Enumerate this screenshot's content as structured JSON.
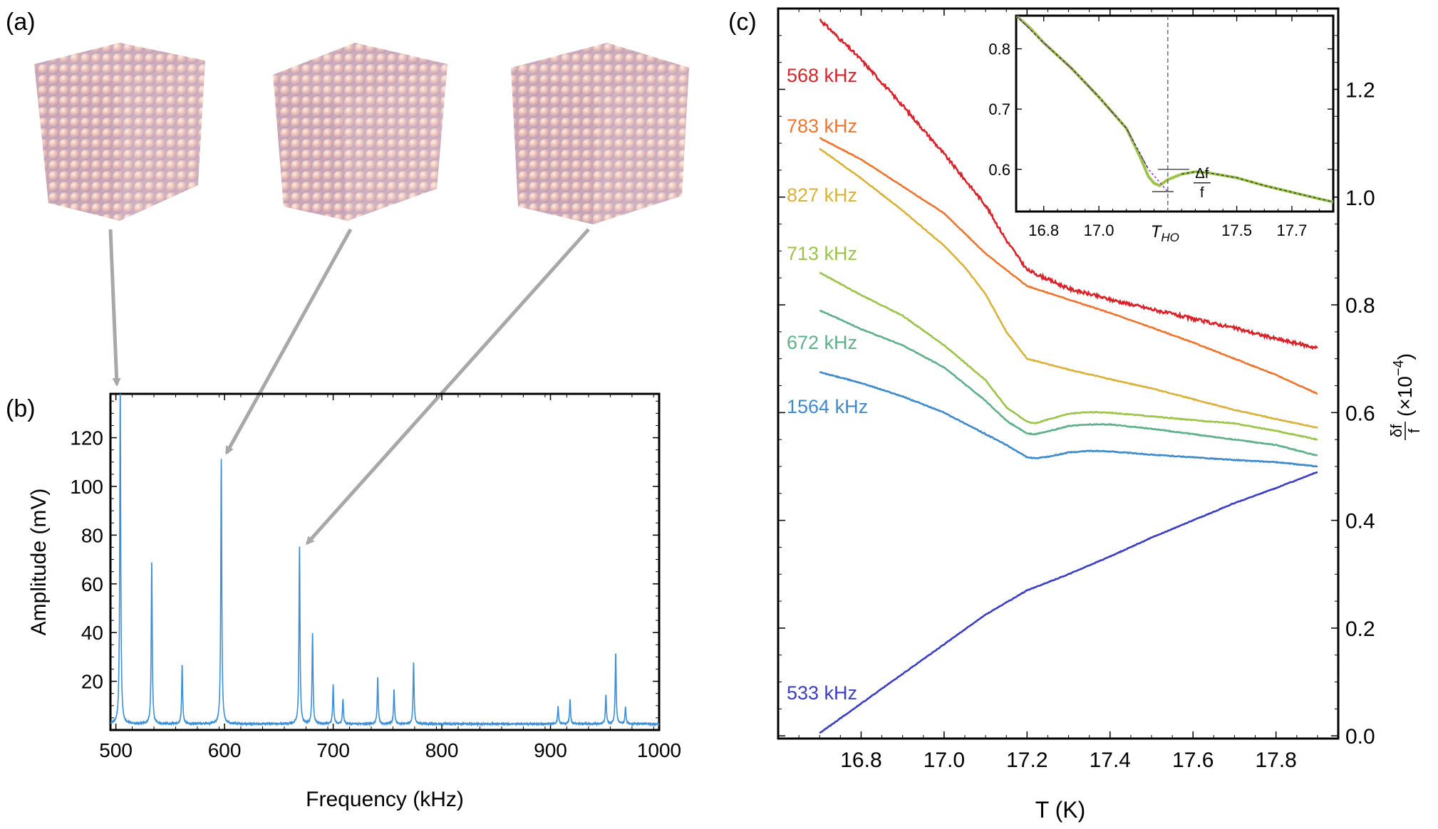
{
  "colors": {
    "spectrum_line": "#3d8fd8",
    "arrow": "#a8a8a8",
    "axis": "#000000",
    "sphere_base": "#e9bcb3",
    "sphere_shade": "#b9a6c8",
    "inset_curve": "#9dc44a",
    "inset_fit": "#3a3a3a",
    "inset_extrap": "#9a3fc0",
    "inset_vline": "#555577"
  },
  "panels": {
    "a_label": "(a)",
    "b_label": "(b)",
    "c_label": "(c)"
  },
  "chart_data": [
    {
      "id": "b",
      "type": "line",
      "title": "",
      "xlabel": "Frequency (kHz)",
      "ylabel": "Amplitude (mV)",
      "xlim": [
        495,
        1000
      ],
      "ylim": [
        0,
        138
      ],
      "xticks": [
        500,
        600,
        700,
        800,
        900,
        1000
      ],
      "yticks": [
        20,
        40,
        60,
        80,
        100,
        120
      ],
      "baseline": 2.5,
      "peaks": [
        {
          "x": 504,
          "y": 138
        },
        {
          "x": 533,
          "y": 66
        },
        {
          "x": 561,
          "y": 24
        },
        {
          "x": 597,
          "y": 109
        },
        {
          "x": 669,
          "y": 73
        },
        {
          "x": 681,
          "y": 37
        },
        {
          "x": 700,
          "y": 16
        },
        {
          "x": 709,
          "y": 10
        },
        {
          "x": 741,
          "y": 19
        },
        {
          "x": 756,
          "y": 14
        },
        {
          "x": 774,
          "y": 25
        },
        {
          "x": 907,
          "y": 7
        },
        {
          "x": 918,
          "y": 10
        },
        {
          "x": 951,
          "y": 12
        },
        {
          "x": 960,
          "y": 29
        },
        {
          "x": 969,
          "y": 7
        }
      ]
    },
    {
      "id": "c",
      "type": "line",
      "title": "",
      "xlabel": "T (K)",
      "ylabel_main": "(×10",
      "ylabel_exp": "−4",
      "ylabel_close": ")",
      "ylabel_frac_num": "δf",
      "ylabel_frac_den": "f",
      "xlim": [
        16.6,
        17.95
      ],
      "ylim": [
        -0.005,
        1.35
      ],
      "xticks": [
        "16.8",
        "17.0",
        "17.2",
        "17.4",
        "17.6",
        "17.8"
      ],
      "xtick_values": [
        16.8,
        17.0,
        17.2,
        17.4,
        17.6,
        17.8
      ],
      "yticks": [
        "0.0",
        "0.2",
        "0.4",
        "0.6",
        "0.8",
        "1.0",
        "1.2"
      ],
      "ytick_values": [
        0.0,
        0.2,
        0.4,
        0.6,
        0.8,
        1.0,
        1.2
      ],
      "series": [
        {
          "name": "568 kHz",
          "color": "#d8232a",
          "noise": 0.006,
          "points": [
            [
              16.7,
              1.33
            ],
            [
              16.8,
              1.255
            ],
            [
              16.9,
              1.17
            ],
            [
              17.0,
              1.08
            ],
            [
              17.1,
              0.985
            ],
            [
              17.15,
              0.92
            ],
            [
              17.2,
              0.865
            ],
            [
              17.3,
              0.83
            ],
            [
              17.4,
              0.81
            ],
            [
              17.5,
              0.792
            ],
            [
              17.6,
              0.774
            ],
            [
              17.7,
              0.757
            ],
            [
              17.8,
              0.737
            ],
            [
              17.9,
              0.72
            ]
          ]
        },
        {
          "name": "783 kHz",
          "color": "#ec7630",
          "noise": 0.0015,
          "points": [
            [
              16.7,
              1.11
            ],
            [
              16.8,
              1.07
            ],
            [
              16.9,
              1.02
            ],
            [
              17.0,
              0.97
            ],
            [
              17.1,
              0.895
            ],
            [
              17.2,
              0.835
            ],
            [
              17.3,
              0.81
            ],
            [
              17.4,
              0.785
            ],
            [
              17.5,
              0.758
            ],
            [
              17.6,
              0.73
            ],
            [
              17.7,
              0.7
            ],
            [
              17.8,
              0.67
            ],
            [
              17.9,
              0.635
            ]
          ]
        },
        {
          "name": "827 kHz",
          "color": "#d9b23a",
          "noise": 0.0015,
          "points": [
            [
              16.7,
              1.09
            ],
            [
              16.8,
              1.035
            ],
            [
              16.9,
              0.975
            ],
            [
              17.0,
              0.91
            ],
            [
              17.05,
              0.87
            ],
            [
              17.1,
              0.82
            ],
            [
              17.15,
              0.75
            ],
            [
              17.2,
              0.7
            ],
            [
              17.3,
              0.68
            ],
            [
              17.4,
              0.662
            ],
            [
              17.5,
              0.645
            ],
            [
              17.6,
              0.625
            ],
            [
              17.7,
              0.605
            ],
            [
              17.8,
              0.588
            ],
            [
              17.9,
              0.572
            ]
          ]
        },
        {
          "name": "713 kHz",
          "color": "#9dc44a",
          "noise": 0.0015,
          "points": [
            [
              16.7,
              0.86
            ],
            [
              16.8,
              0.818
            ],
            [
              16.9,
              0.78
            ],
            [
              17.0,
              0.725
            ],
            [
              17.1,
              0.66
            ],
            [
              17.15,
              0.61
            ],
            [
              17.2,
              0.583
            ],
            [
              17.22,
              0.58
            ],
            [
              17.25,
              0.587
            ],
            [
              17.3,
              0.598
            ],
            [
              17.35,
              0.601
            ],
            [
              17.4,
              0.6
            ],
            [
              17.5,
              0.593
            ],
            [
              17.6,
              0.586
            ],
            [
              17.7,
              0.58
            ],
            [
              17.8,
              0.566
            ],
            [
              17.9,
              0.55
            ]
          ]
        },
        {
          "name": "672 kHz",
          "color": "#5fb08a",
          "noise": 0.0015,
          "points": [
            [
              16.7,
              0.79
            ],
            [
              16.8,
              0.755
            ],
            [
              16.9,
              0.725
            ],
            [
              17.0,
              0.684
            ],
            [
              17.1,
              0.622
            ],
            [
              17.15,
              0.585
            ],
            [
              17.2,
              0.561
            ],
            [
              17.22,
              0.56
            ],
            [
              17.25,
              0.565
            ],
            [
              17.3,
              0.575
            ],
            [
              17.35,
              0.578
            ],
            [
              17.4,
              0.578
            ],
            [
              17.5,
              0.57
            ],
            [
              17.6,
              0.56
            ],
            [
              17.7,
              0.55
            ],
            [
              17.8,
              0.54
            ],
            [
              17.9,
              0.52
            ]
          ]
        },
        {
          "name": "1564 kHz",
          "color": "#3e8acb",
          "noise": 0.0015,
          "points": [
            [
              16.7,
              0.675
            ],
            [
              16.8,
              0.655
            ],
            [
              16.9,
              0.63
            ],
            [
              17.0,
              0.6
            ],
            [
              17.1,
              0.56
            ],
            [
              17.15,
              0.54
            ],
            [
              17.2,
              0.517
            ],
            [
              17.22,
              0.515
            ],
            [
              17.25,
              0.518
            ],
            [
              17.3,
              0.526
            ],
            [
              17.35,
              0.529
            ],
            [
              17.4,
              0.528
            ],
            [
              17.5,
              0.522
            ],
            [
              17.6,
              0.517
            ],
            [
              17.7,
              0.512
            ],
            [
              17.8,
              0.508
            ],
            [
              17.9,
              0.5
            ]
          ]
        },
        {
          "name": "533 kHz",
          "color": "#3b3dc2",
          "noise": 0.0012,
          "points": [
            [
              16.7,
              0.005
            ],
            [
              16.8,
              0.06
            ],
            [
              16.9,
              0.115
            ],
            [
              17.0,
              0.17
            ],
            [
              17.1,
              0.225
            ],
            [
              17.2,
              0.27
            ],
            [
              17.3,
              0.3
            ],
            [
              17.4,
              0.333
            ],
            [
              17.5,
              0.368
            ],
            [
              17.6,
              0.4
            ],
            [
              17.7,
              0.432
            ],
            [
              17.8,
              0.46
            ],
            [
              17.9,
              0.49
            ]
          ]
        }
      ],
      "inset": {
        "xlim": [
          16.7,
          17.85
        ],
        "ylim": [
          0.53,
          0.855
        ],
        "xticks": [
          "16.8",
          "17.0",
          "17.5",
          "17.7"
        ],
        "xtick_values": [
          16.8,
          17.0,
          17.5,
          17.7
        ],
        "yticks": [
          "0.6",
          "0.7",
          "0.8"
        ],
        "ytick_values": [
          0.6,
          0.7,
          0.8
        ],
        "t_ho_main": "T",
        "t_ho_sub": "HO",
        "t_ho_value": 17.25,
        "delta_num": "Δf",
        "delta_den": "f",
        "delta_top": 0.6,
        "delta_bottom": 0.563,
        "curve": [
          [
            16.7,
            0.855
          ],
          [
            16.75,
            0.835
          ],
          [
            16.8,
            0.81
          ],
          [
            16.9,
            0.768
          ],
          [
            17.0,
            0.72
          ],
          [
            17.1,
            0.668
          ],
          [
            17.15,
            0.62
          ],
          [
            17.18,
            0.588
          ],
          [
            17.2,
            0.577
          ],
          [
            17.22,
            0.573
          ],
          [
            17.25,
            0.583
          ],
          [
            17.3,
            0.592
          ],
          [
            17.35,
            0.596
          ],
          [
            17.4,
            0.594
          ],
          [
            17.5,
            0.586
          ],
          [
            17.6,
            0.573
          ],
          [
            17.7,
            0.562
          ],
          [
            17.8,
            0.551
          ],
          [
            17.85,
            0.546
          ]
        ],
        "fit_low": [
          [
            16.7,
            0.855
          ],
          [
            16.8,
            0.81
          ],
          [
            16.9,
            0.768
          ],
          [
            17.0,
            0.72
          ],
          [
            17.1,
            0.668
          ],
          [
            17.18,
            0.6
          ],
          [
            17.25,
            0.563
          ]
        ],
        "fit_high": [
          [
            17.3,
            0.592
          ],
          [
            17.35,
            0.596
          ],
          [
            17.4,
            0.594
          ],
          [
            17.5,
            0.586
          ],
          [
            17.6,
            0.573
          ],
          [
            17.7,
            0.562
          ],
          [
            17.8,
            0.551
          ],
          [
            17.85,
            0.546
          ]
        ]
      }
    }
  ]
}
